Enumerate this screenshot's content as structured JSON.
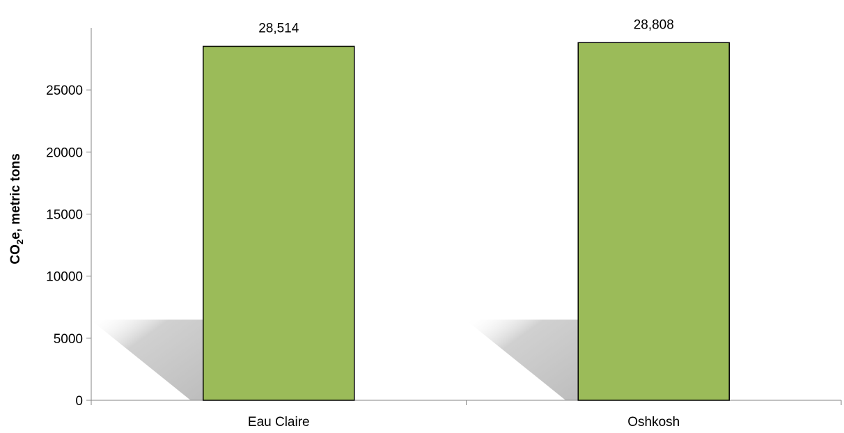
{
  "chart_data": {
    "type": "bar",
    "categories": [
      "Eau Claire",
      "Oshkosh"
    ],
    "values": [
      28514,
      28808
    ],
    "data_labels": [
      "28,514",
      "28,808"
    ],
    "ylabel": {
      "main": "CO",
      "subscript": "2",
      "rest": "e, metric tons"
    },
    "ylim": [
      0,
      30000
    ],
    "yticks": [
      0,
      5000,
      10000,
      15000,
      20000,
      25000
    ],
    "ytick_labels": [
      "0",
      "5000",
      "10000",
      "15000",
      "20000",
      "25000"
    ],
    "grid": false,
    "legend": "none",
    "colors": {
      "bar_fill": "#9bbb59",
      "bar_stroke": "#000000",
      "axis": "#868686",
      "shadow": "#c8c8c8"
    }
  }
}
